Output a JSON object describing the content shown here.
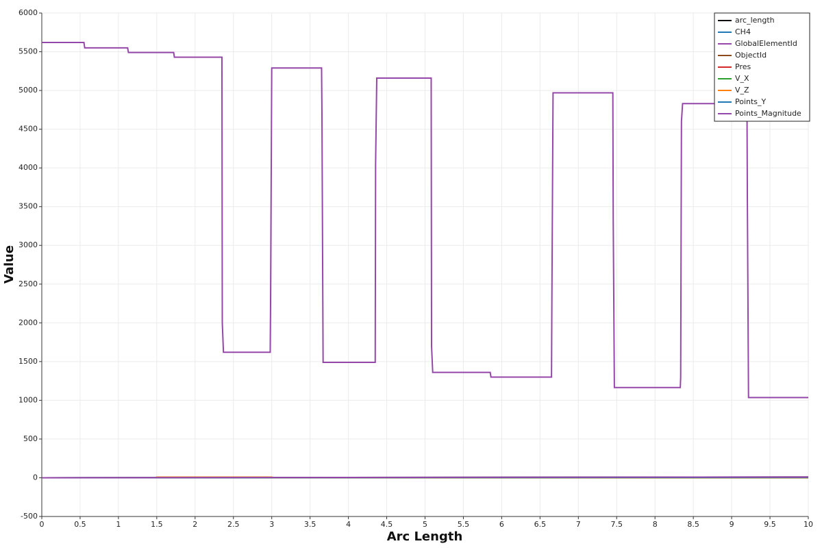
{
  "chart_data": {
    "type": "line",
    "xlabel": "Arc Length",
    "ylabel": "Value",
    "xlim": [
      0,
      10
    ],
    "ylim": [
      -500,
      6000
    ],
    "xticks": [
      0,
      0.5,
      1,
      1.5,
      2,
      2.5,
      3,
      3.5,
      4,
      4.5,
      5,
      5.5,
      6,
      6.5,
      7,
      7.5,
      8,
      8.5,
      9,
      9.5,
      10
    ],
    "yticks": [
      -500,
      0,
      500,
      1000,
      1500,
      2000,
      2500,
      3000,
      3500,
      4000,
      4500,
      5000,
      5500,
      6000
    ],
    "grid": true,
    "legend": "upper right",
    "series": [
      {
        "name": "arc_length",
        "color": "#000000",
        "x": [
          0,
          10
        ],
        "values": [
          0,
          10
        ]
      },
      {
        "name": "CH4",
        "color": "#1f77b4",
        "x": [
          0,
          10
        ],
        "values": [
          0,
          0
        ]
      },
      {
        "name": "GlobalElementId",
        "color": "#9447a8",
        "x": [
          0,
          0.55,
          0.56,
          1.12,
          1.13,
          1.72,
          1.73,
          2.35,
          2.355,
          2.37,
          2.98,
          2.985,
          3.0,
          3.65,
          3.655,
          3.67,
          4.35,
          4.355,
          4.37,
          5.08,
          5.085,
          5.1,
          5.85,
          5.86,
          6.65,
          6.655,
          6.67,
          7.45,
          7.455,
          7.47,
          8.33,
          8.335,
          8.345,
          8.36,
          9.2,
          9.205,
          9.22,
          10
        ],
        "values": [
          5620,
          5620,
          5550,
          5550,
          5490,
          5490,
          5430,
          5430,
          2000,
          1620,
          1620,
          2300,
          5290,
          5290,
          4700,
          1490,
          1490,
          4050,
          5160,
          5160,
          1700,
          1360,
          1360,
          1300,
          1300,
          2330,
          4970,
          4970,
          3350,
          1165,
          1165,
          1300,
          4600,
          4830,
          4830,
          3600,
          1035,
          1035
        ]
      },
      {
        "name": "ObjectId",
        "color": "#8c4a1c",
        "x": [
          0,
          10
        ],
        "values": [
          0,
          0
        ]
      },
      {
        "name": "Pres",
        "color": "#d62728",
        "x": [
          0,
          10
        ],
        "values": [
          0,
          0
        ]
      },
      {
        "name": "V_X",
        "color": "#2ca02c",
        "x": [
          0,
          10
        ],
        "values": [
          0,
          0
        ]
      },
      {
        "name": "V_Z",
        "color": "#ff7f0e",
        "x": [
          0,
          1.5,
          1.5,
          3,
          3,
          10
        ],
        "values": [
          0,
          0,
          8,
          8,
          2,
          2
        ]
      },
      {
        "name": "Points_Y",
        "color": "#1f77b4",
        "x": [
          0,
          3,
          10
        ],
        "values": [
          0,
          2,
          5
        ]
      },
      {
        "name": "Points_Magnitude",
        "color": "#9447a8",
        "x": [
          0,
          1.5,
          3,
          10
        ],
        "values": [
          0,
          1.5,
          3,
          10
        ]
      }
    ]
  }
}
